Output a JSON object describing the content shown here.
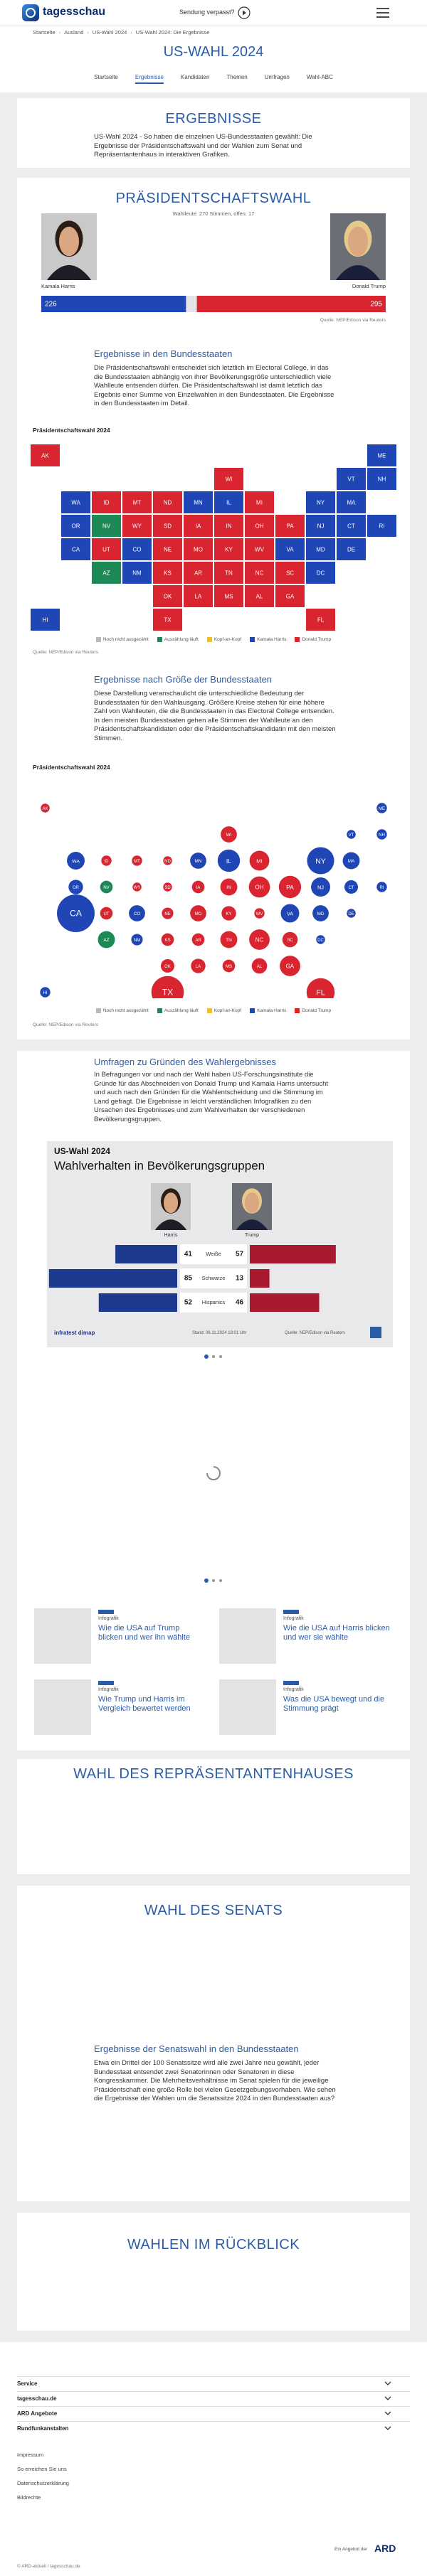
{
  "header": {
    "logo": "tagesschau",
    "missed": "Sendung verpasst?"
  },
  "breadcrumb": [
    "Startseite",
    "Ausland",
    "US-Wahl 2024",
    "US-Wahl 2024: Die Ergebnisse"
  ],
  "title": "US-WAHL 2024",
  "nav": {
    "items": [
      "Startseite",
      "Ergebnisse",
      "Kandidaten",
      "Themen",
      "Umfragen",
      "Wahl-ABC"
    ],
    "active": 1
  },
  "results": {
    "title": "ERGEBNISSE",
    "text": "US-Wahl 2024 - So haben die einzelnen US-Bundesstaaten gewählt: Die Ergebnisse der Präsidentschaftswahl und der Wahlen zum Senat und Repräsentantenhaus in interaktiven Grafiken."
  },
  "president": {
    "title": "PRÄSIDENTSCHAFTSWAHL",
    "note": "Wahlleute: 270 Stimmen, offen: 17",
    "xlim": [
      0,
      538
    ],
    "candidates": [
      {
        "name": "Kamala Harris",
        "color": "#1f46b4",
        "value": 226
      },
      {
        "name": "Donald Trump",
        "color": "#d9252f",
        "value": 295
      }
    ],
    "source": "Quelle: NEP/Edison via Reuters"
  },
  "map_section": {
    "heading": "Ergebnisse in den Bundesstaaten",
    "text": "Die Präsidentschaftswahl entscheidet sich letztlich im Electoral College, in das die Bundesstaaten abhängig von ihrer Bevölkerungsgröße unterschiedlich viele Wahlleute entsenden dürfen. Die Präsidentschaftswahl ist damit letztlich das Ergebnis einer Summe von Einzelwahlen in den Bundesstaaten. Die Ergebnisse in den Bundesstaaten im Detail.",
    "chart_title": "Präsidentschaftswahl 2024",
    "source": "Quelle: NEP/Edison via Reuters"
  },
  "legend": [
    {
      "name": "Noch nicht ausgezählt",
      "color": "#b9b9bd"
    },
    {
      "name": "Auszählung läuft",
      "color": "#1d8a55"
    },
    {
      "name": "Kopf-an-Kopf",
      "color": "#f2c21b"
    },
    {
      "name": "Kamala Harris",
      "color": "#1f46b4"
    },
    {
      "name": "Donald Trump",
      "color": "#d9252f"
    }
  ],
  "states": [
    {
      "label": "AK",
      "status": 4,
      "electors": 3
    },
    {
      "label": "ME",
      "status": 3,
      "electors": 4
    },
    {
      "label": "WI",
      "status": 4,
      "electors": 10
    },
    {
      "label": "VT",
      "status": 3,
      "electors": 3
    },
    {
      "label": "NH",
      "status": 3,
      "electors": 4
    },
    {
      "label": "WA",
      "status": 3,
      "electors": 12
    },
    {
      "label": "ID",
      "status": 4,
      "electors": 4
    },
    {
      "label": "MT",
      "status": 4,
      "electors": 4
    },
    {
      "label": "ND",
      "status": 4,
      "electors": 3
    },
    {
      "label": "MN",
      "status": 3,
      "electors": 10
    },
    {
      "label": "IL",
      "status": 3,
      "electors": 19
    },
    {
      "label": "MI",
      "status": 4,
      "electors": 15
    },
    {
      "label": "NY",
      "status": 3,
      "electors": 28
    },
    {
      "label": "MA",
      "status": 3,
      "electors": 11
    },
    {
      "label": "OR",
      "status": 3,
      "electors": 8
    },
    {
      "label": "NV",
      "status": 1,
      "electors": 6
    },
    {
      "label": "WY",
      "status": 4,
      "electors": 3
    },
    {
      "label": "SD",
      "status": 4,
      "electors": 3
    },
    {
      "label": "IA",
      "status": 4,
      "electors": 6
    },
    {
      "label": "IN",
      "status": 4,
      "electors": 11
    },
    {
      "label": "OH",
      "status": 4,
      "electors": 17
    },
    {
      "label": "PA",
      "status": 4,
      "electors": 19
    },
    {
      "label": "NJ",
      "status": 3,
      "electors": 14
    },
    {
      "label": "CT",
      "status": 3,
      "electors": 7
    },
    {
      "label": "RI",
      "status": 3,
      "electors": 4
    },
    {
      "label": "CA",
      "status": 3,
      "electors": 54
    },
    {
      "label": "UT",
      "status": 4,
      "electors": 6
    },
    {
      "label": "CO",
      "status": 3,
      "electors": 10
    },
    {
      "label": "NE",
      "status": 4,
      "electors": 5
    },
    {
      "label": "MO",
      "status": 4,
      "electors": 10
    },
    {
      "label": "KY",
      "status": 4,
      "electors": 8
    },
    {
      "label": "WV",
      "status": 4,
      "electors": 4
    },
    {
      "label": "VA",
      "status": 3,
      "electors": 13
    },
    {
      "label": "MD",
      "status": 3,
      "electors": 10
    },
    {
      "label": "DE",
      "status": 3,
      "electors": 3
    },
    {
      "label": "AZ",
      "status": 1,
      "electors": 11
    },
    {
      "label": "NM",
      "status": 3,
      "electors": 5
    },
    {
      "label": "KS",
      "status": 4,
      "electors": 6
    },
    {
      "label": "AR",
      "status": 4,
      "electors": 6
    },
    {
      "label": "TN",
      "status": 4,
      "electors": 11
    },
    {
      "label": "NC",
      "status": 4,
      "electors": 16
    },
    {
      "label": "SC",
      "status": 4,
      "electors": 9
    },
    {
      "label": "DC",
      "status": 3,
      "electors": 3
    },
    {
      "label": "OK",
      "status": 4,
      "electors": 7
    },
    {
      "label": "LA",
      "status": 4,
      "electors": 8
    },
    {
      "label": "MS",
      "status": 4,
      "electors": 6
    },
    {
      "label": "AL",
      "status": 4,
      "electors": 9
    },
    {
      "label": "GA",
      "status": 4,
      "electors": 16
    },
    {
      "label": "HI",
      "status": 3,
      "electors": 4
    },
    {
      "label": "TX",
      "status": 4,
      "electors": 40
    },
    {
      "label": "FL",
      "status": 4,
      "electors": 30
    }
  ],
  "size_section": {
    "heading": "Ergebnisse nach Größe der Bundesstaaten",
    "text": "Diese Darstellung veranschaulicht die unterschiedliche Bedeutung der Bundesstaaten für den Wahlausgang. Größere Kreise stehen für eine höhere Zahl von Wahlleuten, die die Bundesstaaten in das Electoral College entsenden. In den meisten Bundesstaaten gehen alle Stimmen der Wahlleute an den Präsidentschaftskandidaten oder die Präsidentschaftskandidatin mit den meisten Stimmen.",
    "chart_title": "Präsidentschaftswahl 2024",
    "source": "Quelle: NEP/Edison via Reuters"
  },
  "survey": {
    "heading": "Umfragen zu Gründen des Wahlergebnisses",
    "text": "In Befragungen vor und nach der Wahl haben US-Forschungsinstitute die Gründe für das Abschneiden von Donald Trump und Kamala Harris untersucht und auch nach den Gründen für die Wahlentscheidung und die Stimmung im Land gefragt. Die Ergebnisse in leicht verständlichen Infografiken zu den Ursachen des Ergebnisses und zum Wahlverhalten der verschiedenen Bevölkerungsgruppen."
  },
  "groups": {
    "kicker": "US-Wahl 2024",
    "title": "Wahlverhalten in Bevölkerungsgruppen",
    "xlim": [
      0,
      100
    ],
    "categories": [
      "Weiße",
      "Schwarze",
      "Hispanics"
    ],
    "series": [
      {
        "name": "Harris",
        "color": "#1c3a8e",
        "values": [
          41,
          85,
          52
        ]
      },
      {
        "name": "Trump",
        "color": "#a8192f",
        "values": [
          57,
          13,
          46
        ]
      }
    ],
    "brand": "infratest dimap",
    "stand": "Stand: 06.11.2024 18:01 Uhr",
    "source": "Quelle: NEP/Edison via Reuters"
  },
  "teasers": [
    {
      "kicker": "Infografik",
      "title": "Wie die USA auf Trump blicken und wer ihn wählte"
    },
    {
      "kicker": "Infografik",
      "title": "Wie die USA auf Harris blicken und wer sie wählte"
    },
    {
      "kicker": "Infografik",
      "title": "Wie Trump und Harris im Vergleich bewertet werden"
    },
    {
      "kicker": "Infografik",
      "title": "Was die USA bewegt und die Stimmung prägt"
    }
  ],
  "house": {
    "title": "WAHL DES REPRÄSENTANTENHAUSES"
  },
  "senate": {
    "title": "WAHL DES SENATS",
    "heading": "Ergebnisse der Senatswahl in den Bundesstaaten",
    "text": "Etwa ein Drittel der 100 Senatssitze wird alle zwei Jahre neu gewählt, jeder Bundesstaat entsendet zwei Senatorinnen oder Senatoren in diese Kongresskammer. Die Mehrheitsverhältnisse im Senat spielen für die jeweilige Präsidentschaft eine große Rolle bei vielen Gesetzgebungsvorhaben. Wie sehen die Ergebnisse der Wahlen um die Senatssitze 2024 in den Bundesstaaten aus?"
  },
  "review": {
    "title": "WAHLEN IM RÜCKBLICK"
  },
  "footer": {
    "sections": [
      "Service",
      "tagesschau.de",
      "ARD Angebote",
      "Rundfunkanstalten"
    ],
    "links": [
      "Impressum",
      "So erreichen Sie uns",
      "Datenschutzerklärung",
      "Bildrechte"
    ],
    "ard_prefix": "Ein Angebot der",
    "ard": "ARD",
    "copyright": "© ARD-aktuell / tagesschau.de"
  }
}
